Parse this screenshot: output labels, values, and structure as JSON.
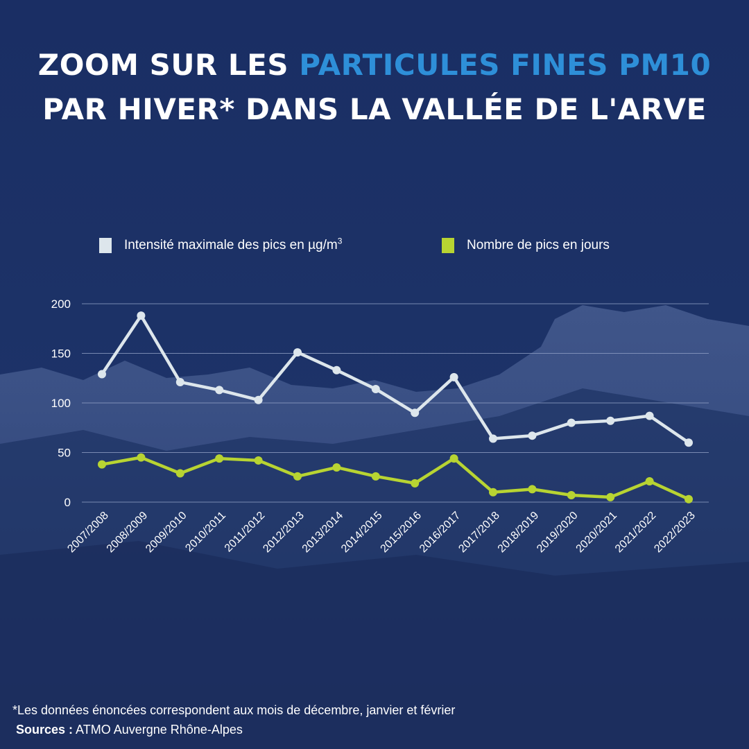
{
  "title": {
    "line1_prefix": "ZOOM SUR LES ",
    "line1_highlight": "PARTICULES FINES PM10",
    "line2": "PAR HIVER* DANS LA VALLÉE DE L'ARVE"
  },
  "colors": {
    "accent": "#2e8fd8",
    "background": "#1c3166",
    "series_intensity": "#dde6ec",
    "series_days": "#b8d432",
    "grid": "#8f9fc4"
  },
  "legend": {
    "intensity_label": "Intensité maximale des pics en µg/m",
    "intensity_unit_sup": "3",
    "days_label": "Nombre de pics en jours"
  },
  "chart_data": {
    "type": "line",
    "categories": [
      "2007/2008",
      "2008/2009",
      "2009/2010",
      "2010/2011",
      "2011/2012",
      "2012/2013",
      "2013/2014",
      "2014/2015",
      "2015/2016",
      "2016/2017",
      "2017/2018",
      "2018/2019",
      "2019/2020",
      "2020/2021",
      "2021/2022",
      "2022/2023"
    ],
    "series": [
      {
        "name": "Intensité maximale des pics en µg/m³",
        "color": "#dde6ec",
        "values": [
          129,
          188,
          121,
          113,
          103,
          151,
          133,
          114,
          90,
          126,
          64,
          67,
          80,
          82,
          87,
          60
        ]
      },
      {
        "name": "Nombre de pics en jours",
        "color": "#b8d432",
        "values": [
          38,
          45,
          29,
          44,
          42,
          26,
          35,
          26,
          19,
          44,
          10,
          13,
          7,
          5,
          21,
          3
        ]
      }
    ],
    "yticks": [
      0,
      50,
      100,
      150,
      200
    ],
    "ylim": [
      0,
      200
    ],
    "grid": true,
    "legend_position": "top",
    "xlabel": "",
    "ylabel": ""
  },
  "footer": {
    "note": "*Les données énoncées correspondent aux mois de décembre, janvier et février",
    "sources_label": "Sources :",
    "sources_value": " ATMO Auvergne Rhône-Alpes"
  }
}
